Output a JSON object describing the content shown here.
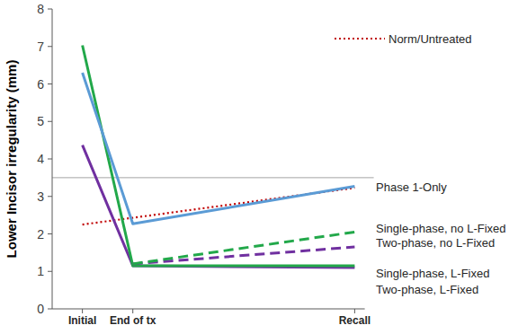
{
  "chart_data": {
    "type": "line",
    "y_label": "Lower Incisor irregularity (mm)",
    "x": [
      0,
      1,
      5.4
    ],
    "xlim": [
      -0.6,
      5.6
    ],
    "xticks": [
      {
        "value": 0,
        "label": "Initial"
      },
      {
        "value": 1,
        "label": "End of tx"
      },
      {
        "value": 5.4,
        "label": "Recall"
      }
    ],
    "ylim": [
      0,
      8
    ],
    "yticks": [
      0,
      1,
      2,
      3,
      4,
      5,
      6,
      7,
      8
    ],
    "grid": false,
    "reference_line": 3.5,
    "series": [
      {
        "name": "Phase 1-Only",
        "color": "#5b9bd5",
        "line_style": "solid",
        "values": [
          6.3,
          2.27,
          3.27
        ]
      },
      {
        "name": "Single-phase, no L-Fixed",
        "color": "#22a84a",
        "line_style": "dashed",
        "values": [
          null,
          1.2,
          2.05
        ]
      },
      {
        "name": "Two-phase, no L-Fixed",
        "color": "#7030a0",
        "line_style": "dashed",
        "values": [
          null,
          1.2,
          1.65
        ]
      },
      {
        "name": "Single-phase, L-Fixed",
        "color": "#22a84a",
        "line_style": "solid",
        "values": [
          7.03,
          1.15,
          1.15
        ]
      },
      {
        "name": "Two-phase, L-Fixed",
        "color": "#7030a0",
        "line_style": "solid",
        "values": [
          4.37,
          1.15,
          1.1
        ]
      },
      {
        "name": "Norm/Untreated",
        "color": "#c00000",
        "line_style": "dotted",
        "values": [
          2.25,
          2.43,
          3.23
        ]
      }
    ]
  }
}
